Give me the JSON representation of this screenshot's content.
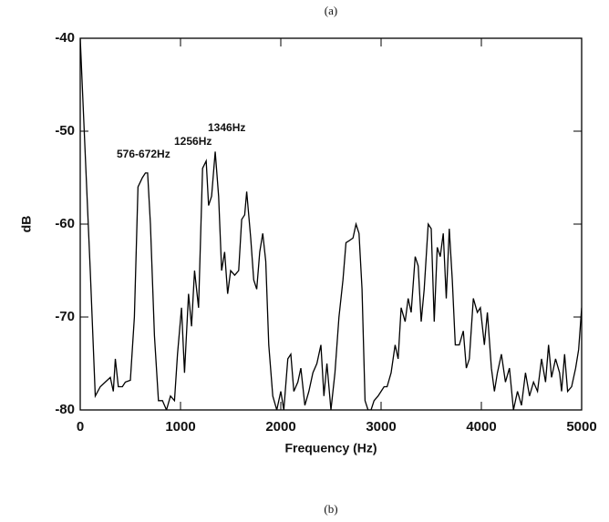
{
  "chart_data": {
    "type": "line",
    "top_label": "(a)",
    "bottom_label": "(b)",
    "x_label": "Frequency (Hz)",
    "y_label": "dB",
    "annotations": [
      "576-672Hz",
      "1256Hz",
      "1346Hz"
    ],
    "xlim": [
      0,
      5000
    ],
    "xticks": [
      0,
      1000,
      2000,
      3000,
      4000,
      5000
    ],
    "ylim": [
      -80,
      -40
    ],
    "yticks": [
      -80,
      -70,
      -60,
      -50,
      -40
    ],
    "color": "#000000",
    "x": [
      0,
      100,
      150,
      200,
      250,
      300,
      330,
      350,
      380,
      420,
      450,
      500,
      540,
      576,
      620,
      650,
      672,
      700,
      740,
      780,
      820,
      860,
      900,
      940,
      970,
      1010,
      1040,
      1080,
      1110,
      1140,
      1180,
      1220,
      1256,
      1280,
      1310,
      1346,
      1380,
      1410,
      1440,
      1470,
      1500,
      1540,
      1580,
      1610,
      1640,
      1660,
      1700,
      1730,
      1760,
      1790,
      1820,
      1850,
      1880,
      1920,
      1960,
      2000,
      2030,
      2070,
      2100,
      2130,
      2170,
      2200,
      2240,
      2280,
      2320,
      2360,
      2400,
      2430,
      2460,
      2500,
      2540,
      2580,
      2620,
      2650,
      2680,
      2720,
      2750,
      2780,
      2810,
      2840,
      2870,
      2900,
      2930,
      2970,
      3000,
      3030,
      3060,
      3100,
      3140,
      3170,
      3200,
      3240,
      3270,
      3300,
      3340,
      3370,
      3400,
      3430,
      3470,
      3500,
      3530,
      3560,
      3590,
      3620,
      3650,
      3680,
      3710,
      3740,
      3780,
      3820,
      3850,
      3880,
      3920,
      3960,
      3990,
      4030,
      4060,
      4100,
      4130,
      4160,
      4200,
      4240,
      4280,
      4320,
      4360,
      4400,
      4440,
      4480,
      4520,
      4560,
      4600,
      4640,
      4670,
      4700,
      4740,
      4780,
      4800,
      4830,
      4860,
      4900,
      4940,
      4970,
      5000
    ],
    "values": [
      -40,
      -65,
      -78.5,
      -77.5,
      -77,
      -76.5,
      -78,
      -74.5,
      -77.5,
      -77.5,
      -77,
      -76.8,
      -70,
      -56,
      -55,
      -54.5,
      -54.5,
      -60,
      -72,
      -79,
      -79,
      -80,
      -78.5,
      -79,
      -74,
      -69,
      -76,
      -67.5,
      -71,
      -65,
      -69,
      -54,
      -53.2,
      -58,
      -57,
      -52.2,
      -57,
      -65,
      -63,
      -67.5,
      -65,
      -65.5,
      -65,
      -59.5,
      -59,
      -56.5,
      -61.5,
      -66,
      -67,
      -63,
      -61,
      -64,
      -73,
      -78.5,
      -80,
      -78,
      -80,
      -74.5,
      -74,
      -78,
      -77,
      -75.5,
      -79.5,
      -78,
      -76,
      -75,
      -73,
      -78.5,
      -75,
      -80,
      -76,
      -70,
      -66,
      -62,
      -61.8,
      -61.5,
      -60,
      -61,
      -67,
      -79,
      -80,
      -80,
      -79,
      -78.5,
      -78,
      -77.5,
      -77.5,
      -76,
      -73,
      -74.5,
      -69,
      -70.5,
      -68,
      -69.5,
      -63.5,
      -64.5,
      -70.5,
      -67,
      -60,
      -60.5,
      -70.5,
      -62.5,
      -63.5,
      -61,
      -68,
      -60.5,
      -66,
      -73,
      -73,
      -71.5,
      -75.5,
      -74.5,
      -68,
      -69.5,
      -69,
      -73,
      -69.5,
      -75.5,
      -78,
      -76,
      -74,
      -77,
      -75.5,
      -80,
      -78,
      -79.5,
      -76,
      -78.5,
      -77,
      -78,
      -74.5,
      -77,
      -73,
      -76.5,
      -74.5,
      -76,
      -78,
      -74,
      -78,
      -77.5,
      -75.5,
      -73.5,
      -69
    ]
  }
}
